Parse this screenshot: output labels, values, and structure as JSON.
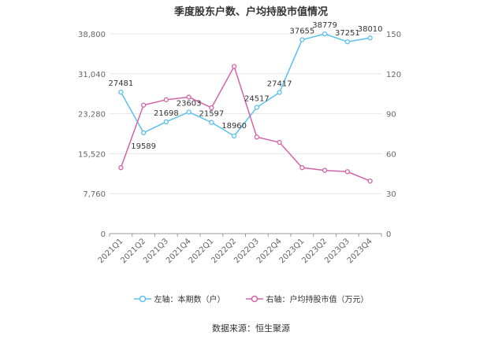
{
  "chart_data": {
    "type": "line",
    "title": "季度股东户数、户均持股市值情况",
    "categories": [
      "2021Q1",
      "2021Q2",
      "2021Q3",
      "2021Q4",
      "2022Q1",
      "2022Q2",
      "2022Q3",
      "2022Q4",
      "2023Q1",
      "2023Q2",
      "2023Q3",
      "2023Q4"
    ],
    "left_axis": {
      "min": 0,
      "max": 38800,
      "ticks": [
        "0",
        "7,760",
        "15,520",
        "23,280",
        "31,040",
        "38,800"
      ]
    },
    "right_axis": {
      "min": 0,
      "max": 150,
      "ticks": [
        "0",
        "30",
        "60",
        "90",
        "120",
        "150"
      ]
    },
    "series": [
      {
        "name": "左轴：本期数（户）",
        "axis": "left",
        "color": "#5bc0eb",
        "values": [
          27481,
          19589,
          21698,
          23603,
          21597,
          18960,
          24517,
          27417,
          37655,
          38779,
          37251,
          38010
        ],
        "labels": [
          "27481",
          "19589",
          "21698",
          "23603",
          "21597",
          "18960",
          "24517",
          "27417",
          "37655",
          "38779",
          "37251",
          "38010"
        ]
      },
      {
        "name": "右轴：户均持股市值（万元）",
        "axis": "right",
        "color": "#d264a8",
        "values": [
          49.5,
          96.5,
          100.5,
          102.5,
          94.5,
          125.5,
          72.5,
          68.5,
          49.5,
          47.5,
          46.5,
          39.5
        ]
      }
    ],
    "grid": true,
    "legend_position": "bottom"
  },
  "source": "数据来源：恒生聚源"
}
